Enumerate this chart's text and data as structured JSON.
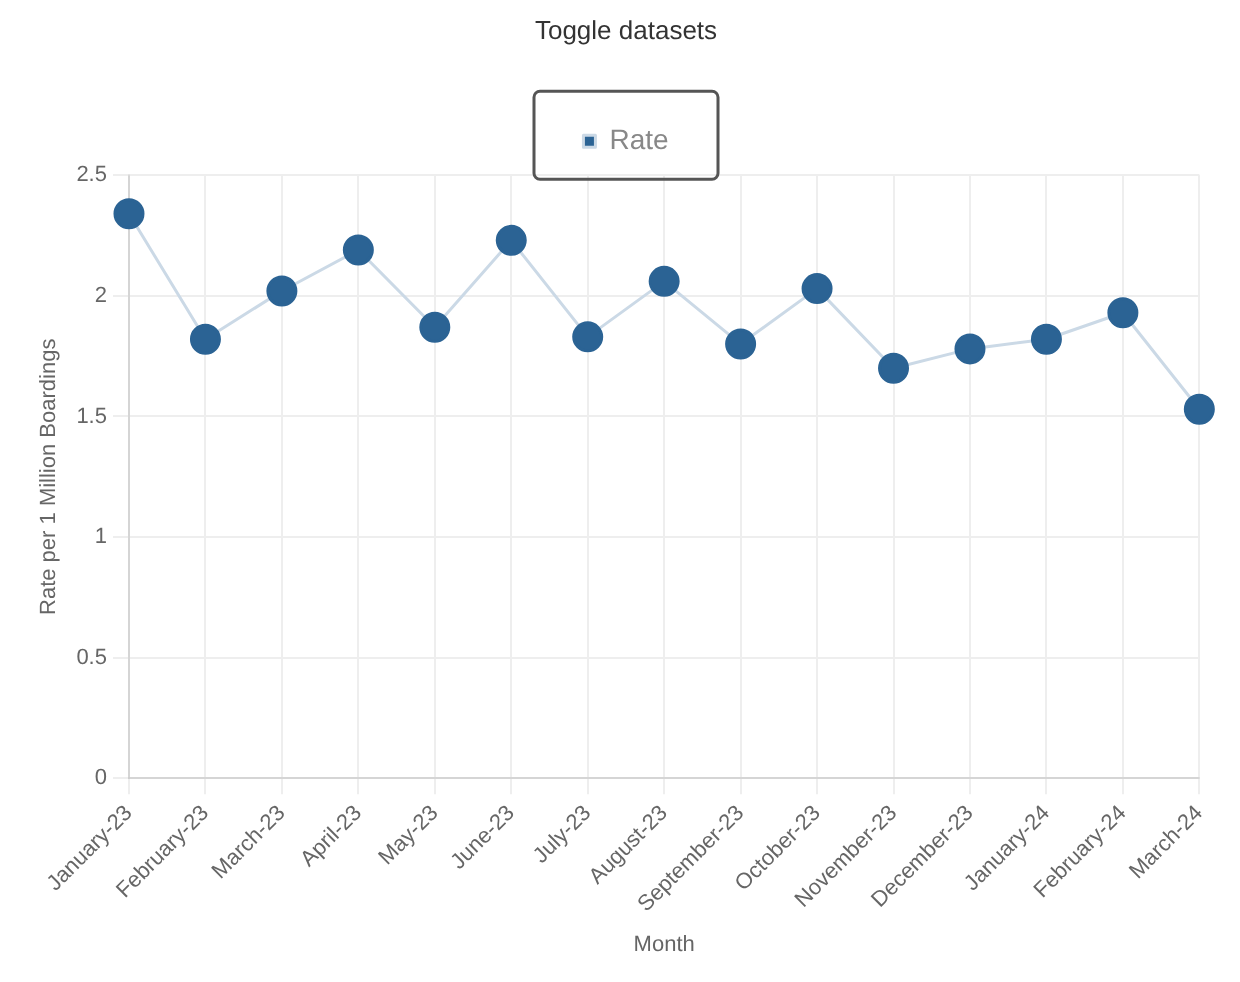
{
  "chart_data": {
    "type": "line",
    "subtitle": "Toggle datasets",
    "xlabel": "Month",
    "ylabel": "Rate per 1 Million Boardings",
    "categories": [
      "January-23",
      "February-23",
      "March-23",
      "April-23",
      "May-23",
      "June-23",
      "July-23",
      "August-23",
      "September-23",
      "October-23",
      "November-23",
      "December-23",
      "January-24",
      "February-24",
      "March-24"
    ],
    "series": [
      {
        "name": "Rate",
        "color": "#2b6394",
        "values": [
          2.34,
          1.82,
          2.02,
          2.19,
          1.87,
          2.23,
          1.83,
          2.06,
          1.8,
          2.03,
          1.7,
          1.78,
          1.82,
          1.93,
          1.53
        ]
      }
    ],
    "ylim": [
      0,
      2.5
    ],
    "yticks": [
      0,
      0.5,
      1,
      1.5,
      2,
      2.5
    ],
    "grid": true,
    "legend": "top",
    "marker": "circle",
    "line_style": "solid"
  }
}
